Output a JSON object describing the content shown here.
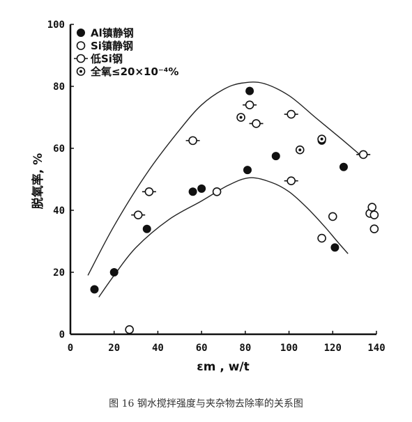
{
  "caption": "图 16 钢水搅拌强度与夹杂物去除率的关系图",
  "chart_data": {
    "type": "scatter",
    "xlabel": "εm , w/t",
    "ylabel": "脱氧率, %",
    "xlim": [
      0,
      140
    ],
    "ylim": [
      0,
      100
    ],
    "xticks": [
      "0",
      "20",
      "40",
      "60",
      "80",
      "100",
      "120",
      "140"
    ],
    "yticks": [
      "0",
      "20",
      "40",
      "60",
      "80",
      "100"
    ],
    "grid": false,
    "legend_position": "top-left",
    "series": [
      {
        "name": "Al镇静钢",
        "marker": "filled-circle",
        "points": [
          [
            11,
            14.5
          ],
          [
            20,
            20
          ],
          [
            35,
            34
          ],
          [
            56,
            46
          ],
          [
            60,
            47
          ],
          [
            78,
            70
          ],
          [
            81,
            53
          ],
          [
            82,
            78.5
          ],
          [
            94,
            57.5
          ],
          [
            115,
            62.5
          ],
          [
            121,
            28
          ],
          [
            125,
            54
          ]
        ]
      },
      {
        "name": "Si镇静钢",
        "marker": "open-circle",
        "points": [
          [
            27,
            1.5
          ],
          [
            67,
            46
          ],
          [
            115,
            31
          ],
          [
            120,
            38
          ],
          [
            137,
            39
          ],
          [
            138,
            41
          ],
          [
            139,
            34
          ],
          [
            139,
            38.5
          ]
        ]
      },
      {
        "name": "低Si钢",
        "marker": "open-circle-with-bar",
        "points": [
          [
            31,
            38.5
          ],
          [
            36,
            46
          ],
          [
            56,
            62.5
          ],
          [
            82,
            74
          ],
          [
            85,
            68
          ],
          [
            101,
            71
          ],
          [
            101,
            49.5
          ],
          [
            134,
            58
          ]
        ]
      },
      {
        "name": "全氧≤20×10⁻⁴%",
        "marker": "dotted-circle",
        "points": [
          [
            78,
            70
          ],
          [
            105,
            59.5
          ],
          [
            115,
            63
          ]
        ]
      }
    ],
    "curves": [
      {
        "name": "upper-envelope",
        "points": [
          [
            8,
            19
          ],
          [
            20,
            35
          ],
          [
            35,
            52
          ],
          [
            50,
            66
          ],
          [
            60,
            74
          ],
          [
            70,
            79
          ],
          [
            78,
            81
          ],
          [
            88,
            81
          ],
          [
            100,
            77
          ],
          [
            112,
            70
          ],
          [
            124,
            63
          ],
          [
            134,
            57
          ]
        ]
      },
      {
        "name": "lower-envelope",
        "points": [
          [
            13,
            12
          ],
          [
            20,
            19
          ],
          [
            30,
            28
          ],
          [
            45,
            37
          ],
          [
            60,
            43
          ],
          [
            72,
            48
          ],
          [
            82,
            50.5
          ],
          [
            92,
            49
          ],
          [
            100,
            46
          ],
          [
            108,
            41
          ],
          [
            116,
            35
          ],
          [
            122,
            30
          ],
          [
            127,
            26
          ]
        ]
      }
    ]
  },
  "legend": {
    "items": [
      {
        "label": "Al镇静钢",
        "marker": "filled-circle"
      },
      {
        "label": "Si镇静钢",
        "marker": "open-circle"
      },
      {
        "label": "低Si钢",
        "marker": "open-circle-with-bar"
      },
      {
        "label": "全氧≤20×10⁻⁴%",
        "marker": "dotted-circle"
      }
    ]
  }
}
